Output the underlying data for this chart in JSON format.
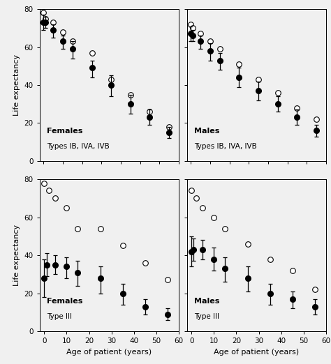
{
  "panels": [
    {
      "title_bold": "Females",
      "title_normal": "Types IB, IVA, IVB",
      "xlim": [
        -2,
        70
      ],
      "ylim": [
        0,
        80
      ],
      "xticks": [
        0,
        10,
        20,
        30,
        40,
        50,
        60,
        70
      ],
      "yticks": [
        0,
        20,
        40,
        60,
        80
      ],
      "xlabel": "",
      "ylabel": "Life expectancy",
      "filled": {
        "x": [
          0,
          1,
          5,
          10,
          15,
          25,
          35,
          45,
          55,
          65
        ],
        "y": [
          73,
          73,
          69,
          63,
          59,
          49,
          40,
          30,
          23,
          15
        ],
        "yerr_lo": [
          4,
          3,
          4,
          4,
          5,
          5,
          6,
          5,
          4,
          3
        ],
        "yerr_hi": [
          4,
          3,
          3,
          3,
          4,
          4,
          5,
          5,
          4,
          3
        ]
      },
      "open": {
        "x": [
          0,
          1,
          5,
          10,
          15,
          25,
          35,
          45,
          55,
          65
        ],
        "y": [
          78,
          75,
          73,
          68,
          63,
          57,
          43,
          35,
          26,
          18
        ]
      }
    },
    {
      "title_bold": "Males",
      "title_normal": "Types IB, IVA, IVB",
      "xlim": [
        -2,
        70
      ],
      "ylim": [
        0,
        80
      ],
      "xticks": [
        0,
        10,
        20,
        30,
        40,
        50,
        60,
        70
      ],
      "yticks": [
        0,
        20,
        40,
        60,
        80
      ],
      "xlabel": "",
      "ylabel": "",
      "filled": {
        "x": [
          0,
          1,
          5,
          10,
          15,
          25,
          35,
          45,
          55,
          65
        ],
        "y": [
          67,
          66,
          63,
          58,
          53,
          44,
          37,
          30,
          23,
          16
        ],
        "yerr_lo": [
          4,
          3,
          4,
          5,
          5,
          5,
          5,
          4,
          4,
          3
        ],
        "yerr_hi": [
          4,
          3,
          3,
          4,
          4,
          5,
          5,
          4,
          4,
          3
        ]
      },
      "open": {
        "x": [
          0,
          1,
          5,
          10,
          15,
          25,
          35,
          45,
          55,
          65
        ],
        "y": [
          72,
          70,
          67,
          63,
          59,
          51,
          43,
          36,
          28,
          22
        ]
      }
    },
    {
      "title_bold": "Females",
      "title_normal": "Type III",
      "xlim": [
        -2,
        60
      ],
      "ylim": [
        0,
        80
      ],
      "xticks": [
        0,
        10,
        20,
        30,
        40,
        50,
        60
      ],
      "yticks": [
        0,
        20,
        40,
        60,
        80
      ],
      "xlabel": "Age of patient (years)",
      "ylabel": "Life expectancy",
      "filled": {
        "x": [
          0,
          1,
          5,
          10,
          15,
          25,
          35,
          45,
          55
        ],
        "y": [
          28,
          35,
          35,
          34,
          31,
          28,
          20,
          13,
          9
        ],
        "yerr_lo": [
          10,
          6,
          5,
          6,
          7,
          8,
          6,
          4,
          3
        ],
        "yerr_hi": [
          10,
          6,
          5,
          5,
          6,
          6,
          5,
          4,
          3
        ]
      },
      "open": {
        "x": [
          0,
          2,
          5,
          10,
          15,
          25,
          35,
          45,
          55
        ],
        "y": [
          78,
          74,
          70,
          65,
          54,
          54,
          45,
          36,
          27
        ]
      }
    },
    {
      "title_bold": "Males",
      "title_normal": "Type III",
      "xlim": [
        -2,
        60
      ],
      "ylim": [
        0,
        80
      ],
      "xticks": [
        0,
        10,
        20,
        30,
        40,
        50,
        60
      ],
      "yticks": [
        0,
        20,
        40,
        60,
        80
      ],
      "xlabel": "Age of patient (years)",
      "ylabel": "",
      "filled": {
        "x": [
          0,
          1,
          5,
          10,
          15,
          25,
          35,
          45,
          55
        ],
        "y": [
          42,
          43,
          43,
          38,
          33,
          28,
          20,
          17,
          13
        ],
        "yerr_lo": [
          8,
          6,
          5,
          6,
          7,
          7,
          6,
          5,
          4
        ],
        "yerr_hi": [
          8,
          6,
          5,
          6,
          6,
          6,
          5,
          4,
          4
        ]
      },
      "open": {
        "x": [
          0,
          2,
          5,
          10,
          15,
          25,
          35,
          45,
          55
        ],
        "y": [
          74,
          70,
          65,
          60,
          54,
          46,
          38,
          32,
          22
        ]
      }
    }
  ],
  "marker_size": 5.5,
  "elinewidth": 0.9,
  "capsize": 2,
  "capthick": 0.9,
  "background_color": "#f0f0f0",
  "font_size": 7.5,
  "title_bold_size": 8,
  "label_fontsize": 8
}
